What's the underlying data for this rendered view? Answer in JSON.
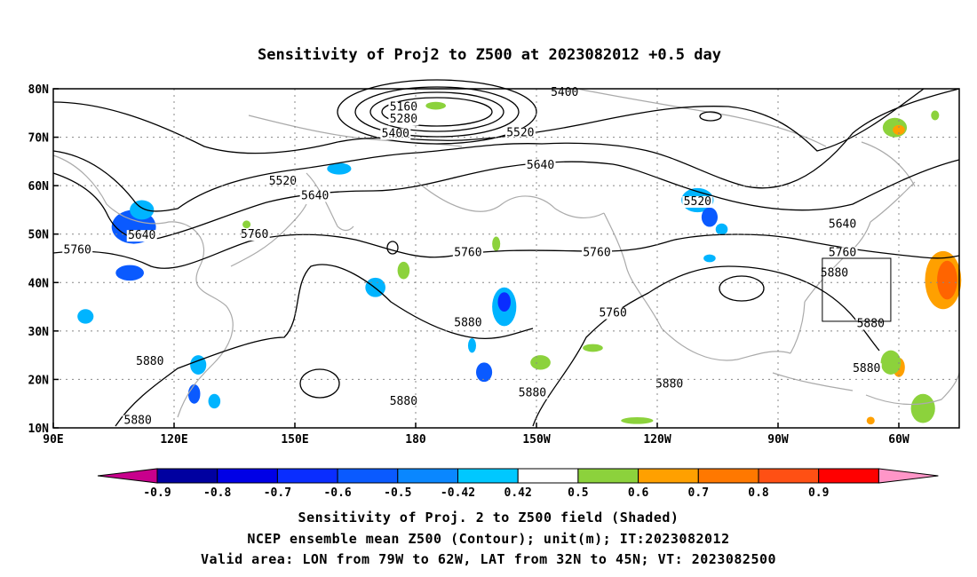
{
  "title": "Sensitivity of Proj2 to Z500 at 2023082012 +0.5 day",
  "map": {
    "lat_labels": [
      "80N",
      "70N",
      "60N",
      "50N",
      "40N",
      "30N",
      "20N",
      "10N"
    ],
    "lon_labels": [
      "90E",
      "120E",
      "150E",
      "180",
      "150W",
      "120W",
      "90W",
      "60W"
    ],
    "lon_range": [
      "90E",
      "45W"
    ],
    "lat_range": [
      "10N",
      "80N"
    ],
    "grid": "dotted",
    "contour_labels": [
      {
        "text": "5400",
        "lon": 217,
        "lat": 78.5
      },
      {
        "text": "5160",
        "lon": 177,
        "lat": 75.5
      },
      {
        "text": "5280",
        "lon": 177,
        "lat": 73.0
      },
      {
        "text": "5400",
        "lon": 175,
        "lat": 70.0
      },
      {
        "text": "5520",
        "lon": 206,
        "lat": 70.2
      },
      {
        "text": "5640",
        "lon": 211,
        "lat": 63.5
      },
      {
        "text": "5520",
        "lon": 250,
        "lat": 56.0
      },
      {
        "text": "5640",
        "lon": 286,
        "lat": 51.3
      },
      {
        "text": "5520",
        "lon": 147,
        "lat": 60.2
      },
      {
        "text": "5640",
        "lon": 155,
        "lat": 57.2
      },
      {
        "text": "5640",
        "lon": 112,
        "lat": 49.0
      },
      {
        "text": "5760",
        "lon": 96,
        "lat": 46.0
      },
      {
        "text": "5760",
        "lon": 140,
        "lat": 49.2
      },
      {
        "text": "5760",
        "lon": 193,
        "lat": 45.5
      },
      {
        "text": "5760",
        "lon": 225,
        "lat": 45.5
      },
      {
        "text": "5760",
        "lon": 286,
        "lat": 45.5
      },
      {
        "text": "5880",
        "lon": 284,
        "lat": 41.2
      },
      {
        "text": "5760",
        "lon": 229,
        "lat": 33.0
      },
      {
        "text": "5880",
        "lon": 193,
        "lat": 31.0
      },
      {
        "text": "5880",
        "lon": 293,
        "lat": 30.8
      },
      {
        "text": "5880",
        "lon": 114,
        "lat": 23.0
      },
      {
        "text": "5880",
        "lon": 292,
        "lat": 21.5
      },
      {
        "text": "5880",
        "lon": 177,
        "lat": 14.8
      },
      {
        "text": "5880",
        "lon": 111,
        "lat": 10.8
      },
      {
        "text": "5880",
        "lon": 209,
        "lat": 16.5
      },
      {
        "text": "5880",
        "lon": 243,
        "lat": 18.3
      }
    ],
    "valid_box": {
      "lon_from": "79W",
      "lon_to": "62W",
      "lat_from": "32N",
      "lat_to": "45N"
    },
    "shaded_regions": [
      {
        "lon": 110,
        "lat": 51.5,
        "rx": 5.5,
        "ry": 3.5,
        "level": "-0.6",
        "color": "#0a5aff"
      },
      {
        "lon": 112,
        "lat": 55.0,
        "rx": 3.0,
        "ry": 2.0,
        "level": "-0.5",
        "color": "#00b4ff"
      },
      {
        "lon": 109,
        "lat": 42.0,
        "rx": 3.5,
        "ry": 1.6,
        "level": "-0.6",
        "color": "#0a5aff"
      },
      {
        "lon": 98,
        "lat": 33.0,
        "rx": 2.0,
        "ry": 1.5,
        "level": "-0.5",
        "color": "#00b4ff"
      },
      {
        "lon": 161,
        "lat": 63.5,
        "rx": 3.0,
        "ry": 1.2,
        "level": "-0.5",
        "color": "#00b4ff"
      },
      {
        "lon": 177,
        "lat": 42.5,
        "rx": 1.5,
        "ry": 1.8,
        "level": "0.5",
        "color": "#8cd23c"
      },
      {
        "lon": 170,
        "lat": 39.0,
        "rx": 2.5,
        "ry": 2.0,
        "level": "-0.5",
        "color": "#00b4ff"
      },
      {
        "lon": 202,
        "lat": 35.0,
        "rx": 3.0,
        "ry": 4.0,
        "level": "-0.5",
        "color": "#00b4ff"
      },
      {
        "lon": 202,
        "lat": 36.0,
        "rx": 1.6,
        "ry": 2.0,
        "level": "-0.7",
        "color": "#0a2dff"
      },
      {
        "lon": 197,
        "lat": 21.5,
        "rx": 2.0,
        "ry": 2.0,
        "level": "-0.6",
        "color": "#0a5aff"
      },
      {
        "lon": 194,
        "lat": 27.0,
        "rx": 1.0,
        "ry": 1.5,
        "level": "-0.5",
        "color": "#00b4ff"
      },
      {
        "lon": 126,
        "lat": 23.0,
        "rx": 2.0,
        "ry": 2.0,
        "level": "-0.5",
        "color": "#00b4ff"
      },
      {
        "lon": 125,
        "lat": 17.0,
        "rx": 1.5,
        "ry": 2.0,
        "level": "-0.6",
        "color": "#0a5aff"
      },
      {
        "lon": 130,
        "lat": 15.5,
        "rx": 1.5,
        "ry": 1.5,
        "level": "-0.5",
        "color": "#00b4ff"
      },
      {
        "lon": 185,
        "lat": 76.5,
        "rx": 2.5,
        "ry": 0.8,
        "level": "0.5",
        "color": "#8cd23c"
      },
      {
        "lon": 250,
        "lat": 57.0,
        "rx": 4.0,
        "ry": 2.5,
        "level": "-0.5",
        "color": "#00b4ff"
      },
      {
        "lon": 253,
        "lat": 53.5,
        "rx": 2.0,
        "ry": 2.0,
        "level": "-0.6",
        "color": "#0a5aff"
      },
      {
        "lon": 256,
        "lat": 51.0,
        "rx": 1.5,
        "ry": 1.2,
        "level": "-0.5",
        "color": "#00b4ff"
      },
      {
        "lon": 253,
        "lat": 45.0,
        "rx": 1.5,
        "ry": 0.8,
        "level": "-0.5",
        "color": "#00b4ff"
      },
      {
        "lon": 235,
        "lat": 11.5,
        "rx": 4.0,
        "ry": 0.7,
        "level": "0.5",
        "color": "#8cd23c"
      },
      {
        "lon": 299,
        "lat": 72.0,
        "rx": 3.0,
        "ry": 2.0,
        "level": "0.5",
        "color": "#8cd23c"
      },
      {
        "lon": 300,
        "lat": 71.5,
        "rx": 1.5,
        "ry": 1.0,
        "level": "0.6",
        "color": "#ffa000"
      },
      {
        "lon": 311,
        "lat": 40.5,
        "rx": 4.5,
        "ry": 6.0,
        "level": "0.6",
        "color": "#ffa000"
      },
      {
        "lon": 312,
        "lat": 40.5,
        "rx": 2.5,
        "ry": 4.0,
        "level": "0.7",
        "color": "#ff6400"
      },
      {
        "lon": 300,
        "lat": 22.5,
        "rx": 1.5,
        "ry": 2.0,
        "level": "0.6",
        "color": "#ffa000"
      },
      {
        "lon": 298,
        "lat": 23.5,
        "rx": 2.5,
        "ry": 2.5,
        "level": "0.5",
        "color": "#8cd23c"
      },
      {
        "lon": 306,
        "lat": 14.0,
        "rx": 1.5,
        "ry": 2.5,
        "level": "0.6",
        "color": "#ffa000"
      },
      {
        "lon": 306,
        "lat": 14.0,
        "rx": 3.0,
        "ry": 3.0,
        "level": "0.5",
        "color": "#8cd23c"
      },
      {
        "lon": 293,
        "lat": 11.5,
        "rx": 1.0,
        "ry": 0.8,
        "level": "0.6",
        "color": "#ffa000"
      },
      {
        "lon": 211,
        "lat": 23.5,
        "rx": 2.5,
        "ry": 1.5,
        "level": "0.5",
        "color": "#8cd23c"
      },
      {
        "lon": 224,
        "lat": 26.5,
        "rx": 2.5,
        "ry": 0.8,
        "level": "0.5",
        "color": "#8cd23c"
      },
      {
        "lon": 309,
        "lat": 74.5,
        "rx": 1.0,
        "ry": 1.0,
        "level": "0.5",
        "color": "#8cd23c"
      },
      {
        "lon": 138,
        "lat": 52.0,
        "rx": 1.0,
        "ry": 0.8,
        "level": "0.5",
        "color": "#8cd23c"
      },
      {
        "lon": 200,
        "lat": 48.0,
        "rx": 1.0,
        "ry": 1.5,
        "level": "0.5",
        "color": "#8cd23c"
      }
    ]
  },
  "colorbar": {
    "values": [
      "-0.9",
      "-0.8",
      "-0.7",
      "-0.6",
      "-0.5",
      "-0.42",
      "0.42",
      "0.5",
      "0.6",
      "0.7",
      "0.8",
      "0.9"
    ],
    "colors": [
      "#c8008c",
      "#0000a0",
      "#0000e6",
      "#0a2dff",
      "#0a5aff",
      "#0a87ff",
      "#00c8ff",
      "#ffffff",
      "#8cd23c",
      "#ffa000",
      "#ff7800",
      "#ff5014",
      "#ff0000",
      "#ff96c8"
    ]
  },
  "caption": {
    "line1": "Sensitivity of Proj. 2 to Z500 field (Shaded)",
    "line2": "NCEP ensemble mean Z500 (Contour); unit(m); IT:2023082012",
    "line3": "Valid area: LON from 79W to 62W, LAT from 32N to 45N; VT: 2023082500"
  }
}
